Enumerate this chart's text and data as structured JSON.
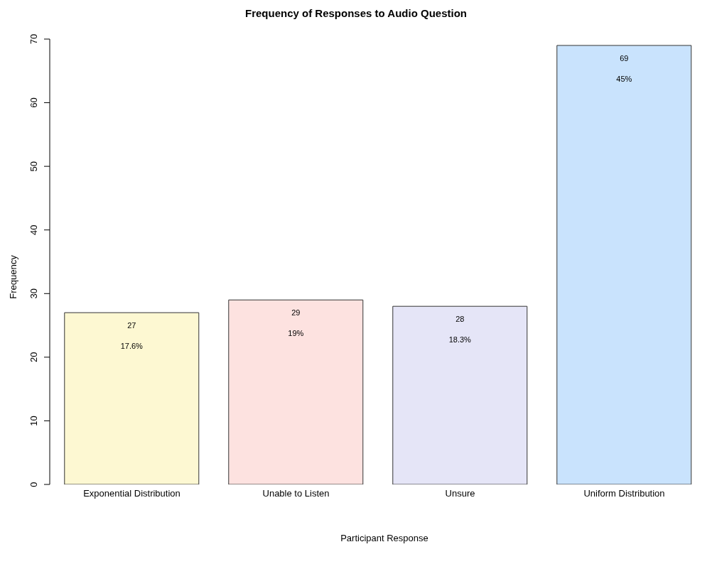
{
  "chart_data": {
    "type": "bar",
    "title": "Frequency of Responses to Audio Question",
    "xlabel": "Participant Response",
    "ylabel": "Frequency",
    "categories": [
      "Exponential Distribution",
      "Unable to Listen",
      "Unsure",
      "Uniform Distribution"
    ],
    "values": [
      27,
      29,
      28,
      69
    ],
    "colors": [
      "#fdf8d2",
      "#fde2e0",
      "#e5e5f7",
      "#c9e3fd"
    ],
    "ylim": [
      0,
      70
    ],
    "yticks": [
      0,
      10,
      20,
      30,
      40,
      50,
      60,
      70
    ],
    "grid": false,
    "value_labels": [
      "27\n17.6%",
      "29\n19%",
      "28\n18.3%",
      "69\n45%"
    ]
  }
}
